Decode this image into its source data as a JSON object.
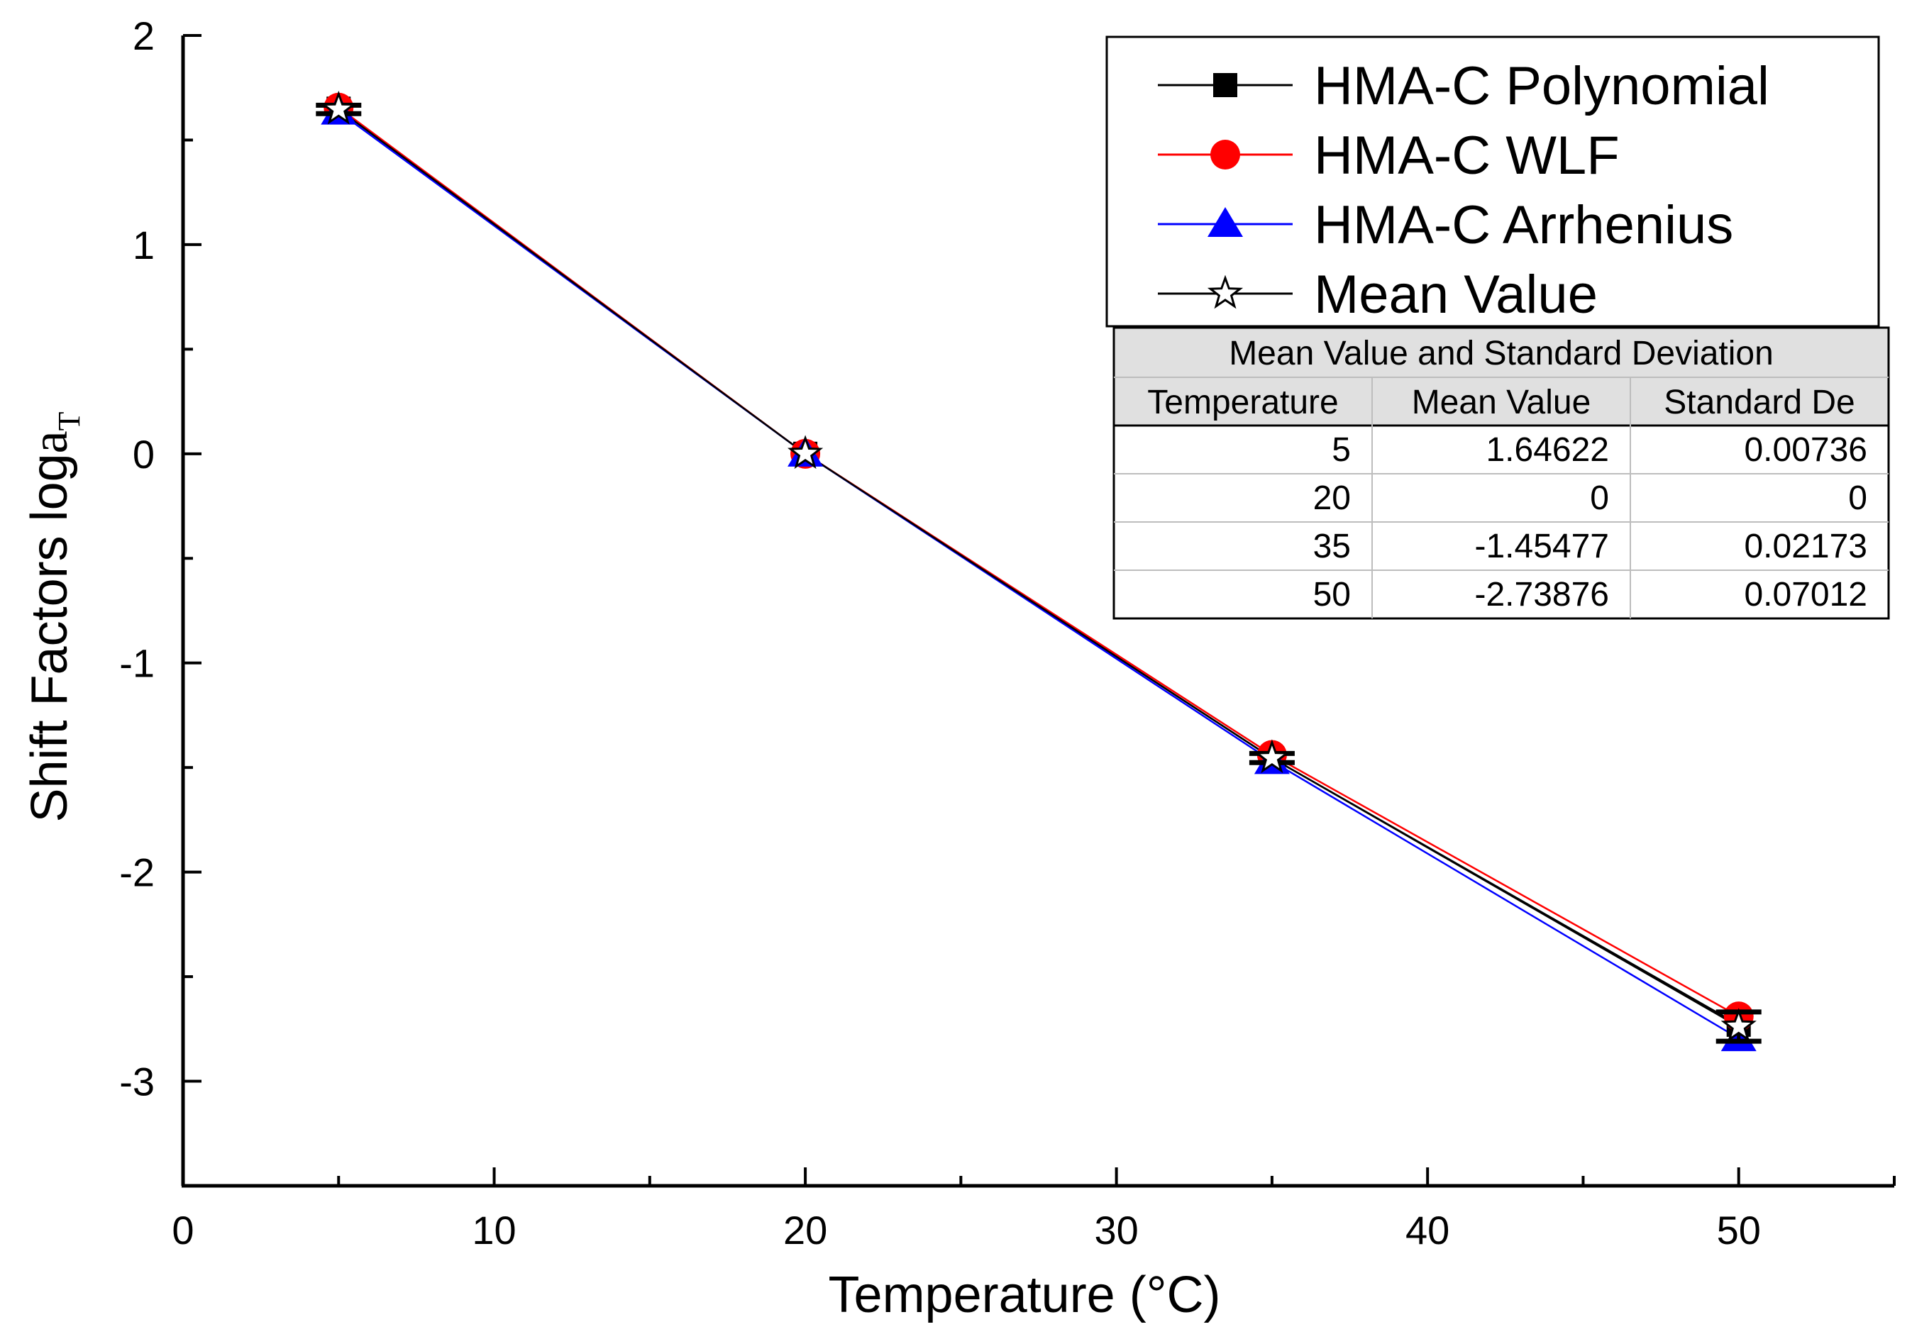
{
  "chart_data": {
    "type": "line",
    "xlabel": "Temperature (°C)",
    "ylabel": {
      "text": "Shift Factors log",
      "italic": "a",
      "subscript": "T"
    },
    "xlim": [
      0,
      55
    ],
    "ylim": [
      -3.5,
      2
    ],
    "x_major_ticks": [
      0,
      10,
      20,
      30,
      40,
      50
    ],
    "x_tick_labels": [
      "0",
      "10",
      "20",
      "30",
      "40",
      "50"
    ],
    "x_minor_ticks": [
      5,
      15,
      25,
      35,
      45,
      55
    ],
    "y_major_ticks": [
      2,
      1,
      0,
      -1,
      -2,
      -3
    ],
    "y_tick_labels": [
      "2",
      "1",
      "0",
      "-1",
      "-2",
      "-3"
    ],
    "y_minor_ticks": [
      1.5,
      0.5,
      -0.5,
      -1.5,
      -2.5,
      -3.5
    ],
    "grid": false,
    "legend_position": "top-right",
    "x": [
      5,
      20,
      35,
      50
    ],
    "series": [
      {
        "name": "HMA-C  Polynomial",
        "values": [
          1.65,
          0,
          -1.455,
          -2.73
        ],
        "color": "#000000",
        "marker": "square"
      },
      {
        "name": "HMA-C  WLF",
        "values": [
          1.655,
          0,
          -1.44,
          -2.69
        ],
        "color": "#ff0000",
        "marker": "circle"
      },
      {
        "name": "HMA-C  Arrhenius",
        "values": [
          1.635,
          0,
          -1.47,
          -2.795
        ],
        "color": "#0000ff",
        "marker": "triangle"
      },
      {
        "name": "Mean Value",
        "values": [
          1.64622,
          0,
          -1.45477,
          -2.73876
        ],
        "color": "#000000",
        "marker": "star",
        "error": [
          0.00736,
          0,
          0.02173,
          0.07012
        ]
      }
    ],
    "table": {
      "title": "Mean Value and Standard Deviation",
      "headers": [
        "Temperature",
        "Mean Value",
        "Standard De"
      ],
      "rows": [
        [
          "5",
          "1.64622",
          "0.00736"
        ],
        [
          "20",
          "0",
          "0"
        ],
        [
          "35",
          "-1.45477",
          "0.02173"
        ],
        [
          "50",
          "-2.73876",
          "0.07012"
        ]
      ],
      "header_fill": "#e0e0e0"
    }
  }
}
